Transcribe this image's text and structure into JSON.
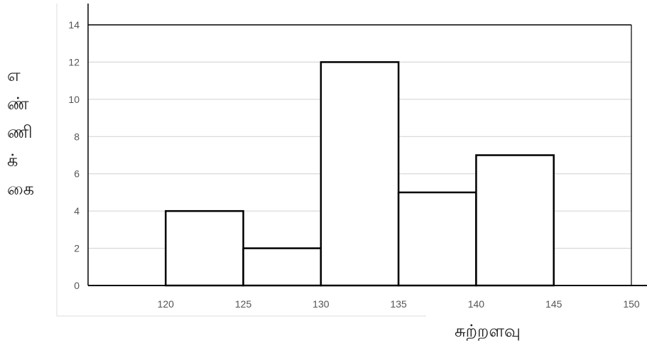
{
  "chart_data": {
    "type": "bar",
    "title": "",
    "xlabel": "சுற்றளவு",
    "ylabel": [
      "எ",
      "ண்",
      "ணி",
      "க்",
      "கை"
    ],
    "bins": [
      {
        "x0": 120,
        "x1": 125,
        "value": 4
      },
      {
        "x0": 125,
        "x1": 130,
        "value": 2
      },
      {
        "x0": 130,
        "x1": 135,
        "value": 12
      },
      {
        "x0": 135,
        "x1": 140,
        "value": 5
      },
      {
        "x0": 140,
        "x1": 145,
        "value": 7
      }
    ],
    "xticks": [
      "120",
      "125",
      "130",
      "135",
      "140",
      "145",
      "150"
    ],
    "yticks": [
      "0",
      "2",
      "4",
      "6",
      "8",
      "10",
      "12",
      "14"
    ],
    "xlim": [
      115,
      150
    ],
    "ylim": [
      0,
      14
    ],
    "grid": true,
    "colors": {
      "bar_fill": "#ffffff",
      "bar_stroke": "#000000",
      "grid": "#d0d0d0"
    }
  }
}
